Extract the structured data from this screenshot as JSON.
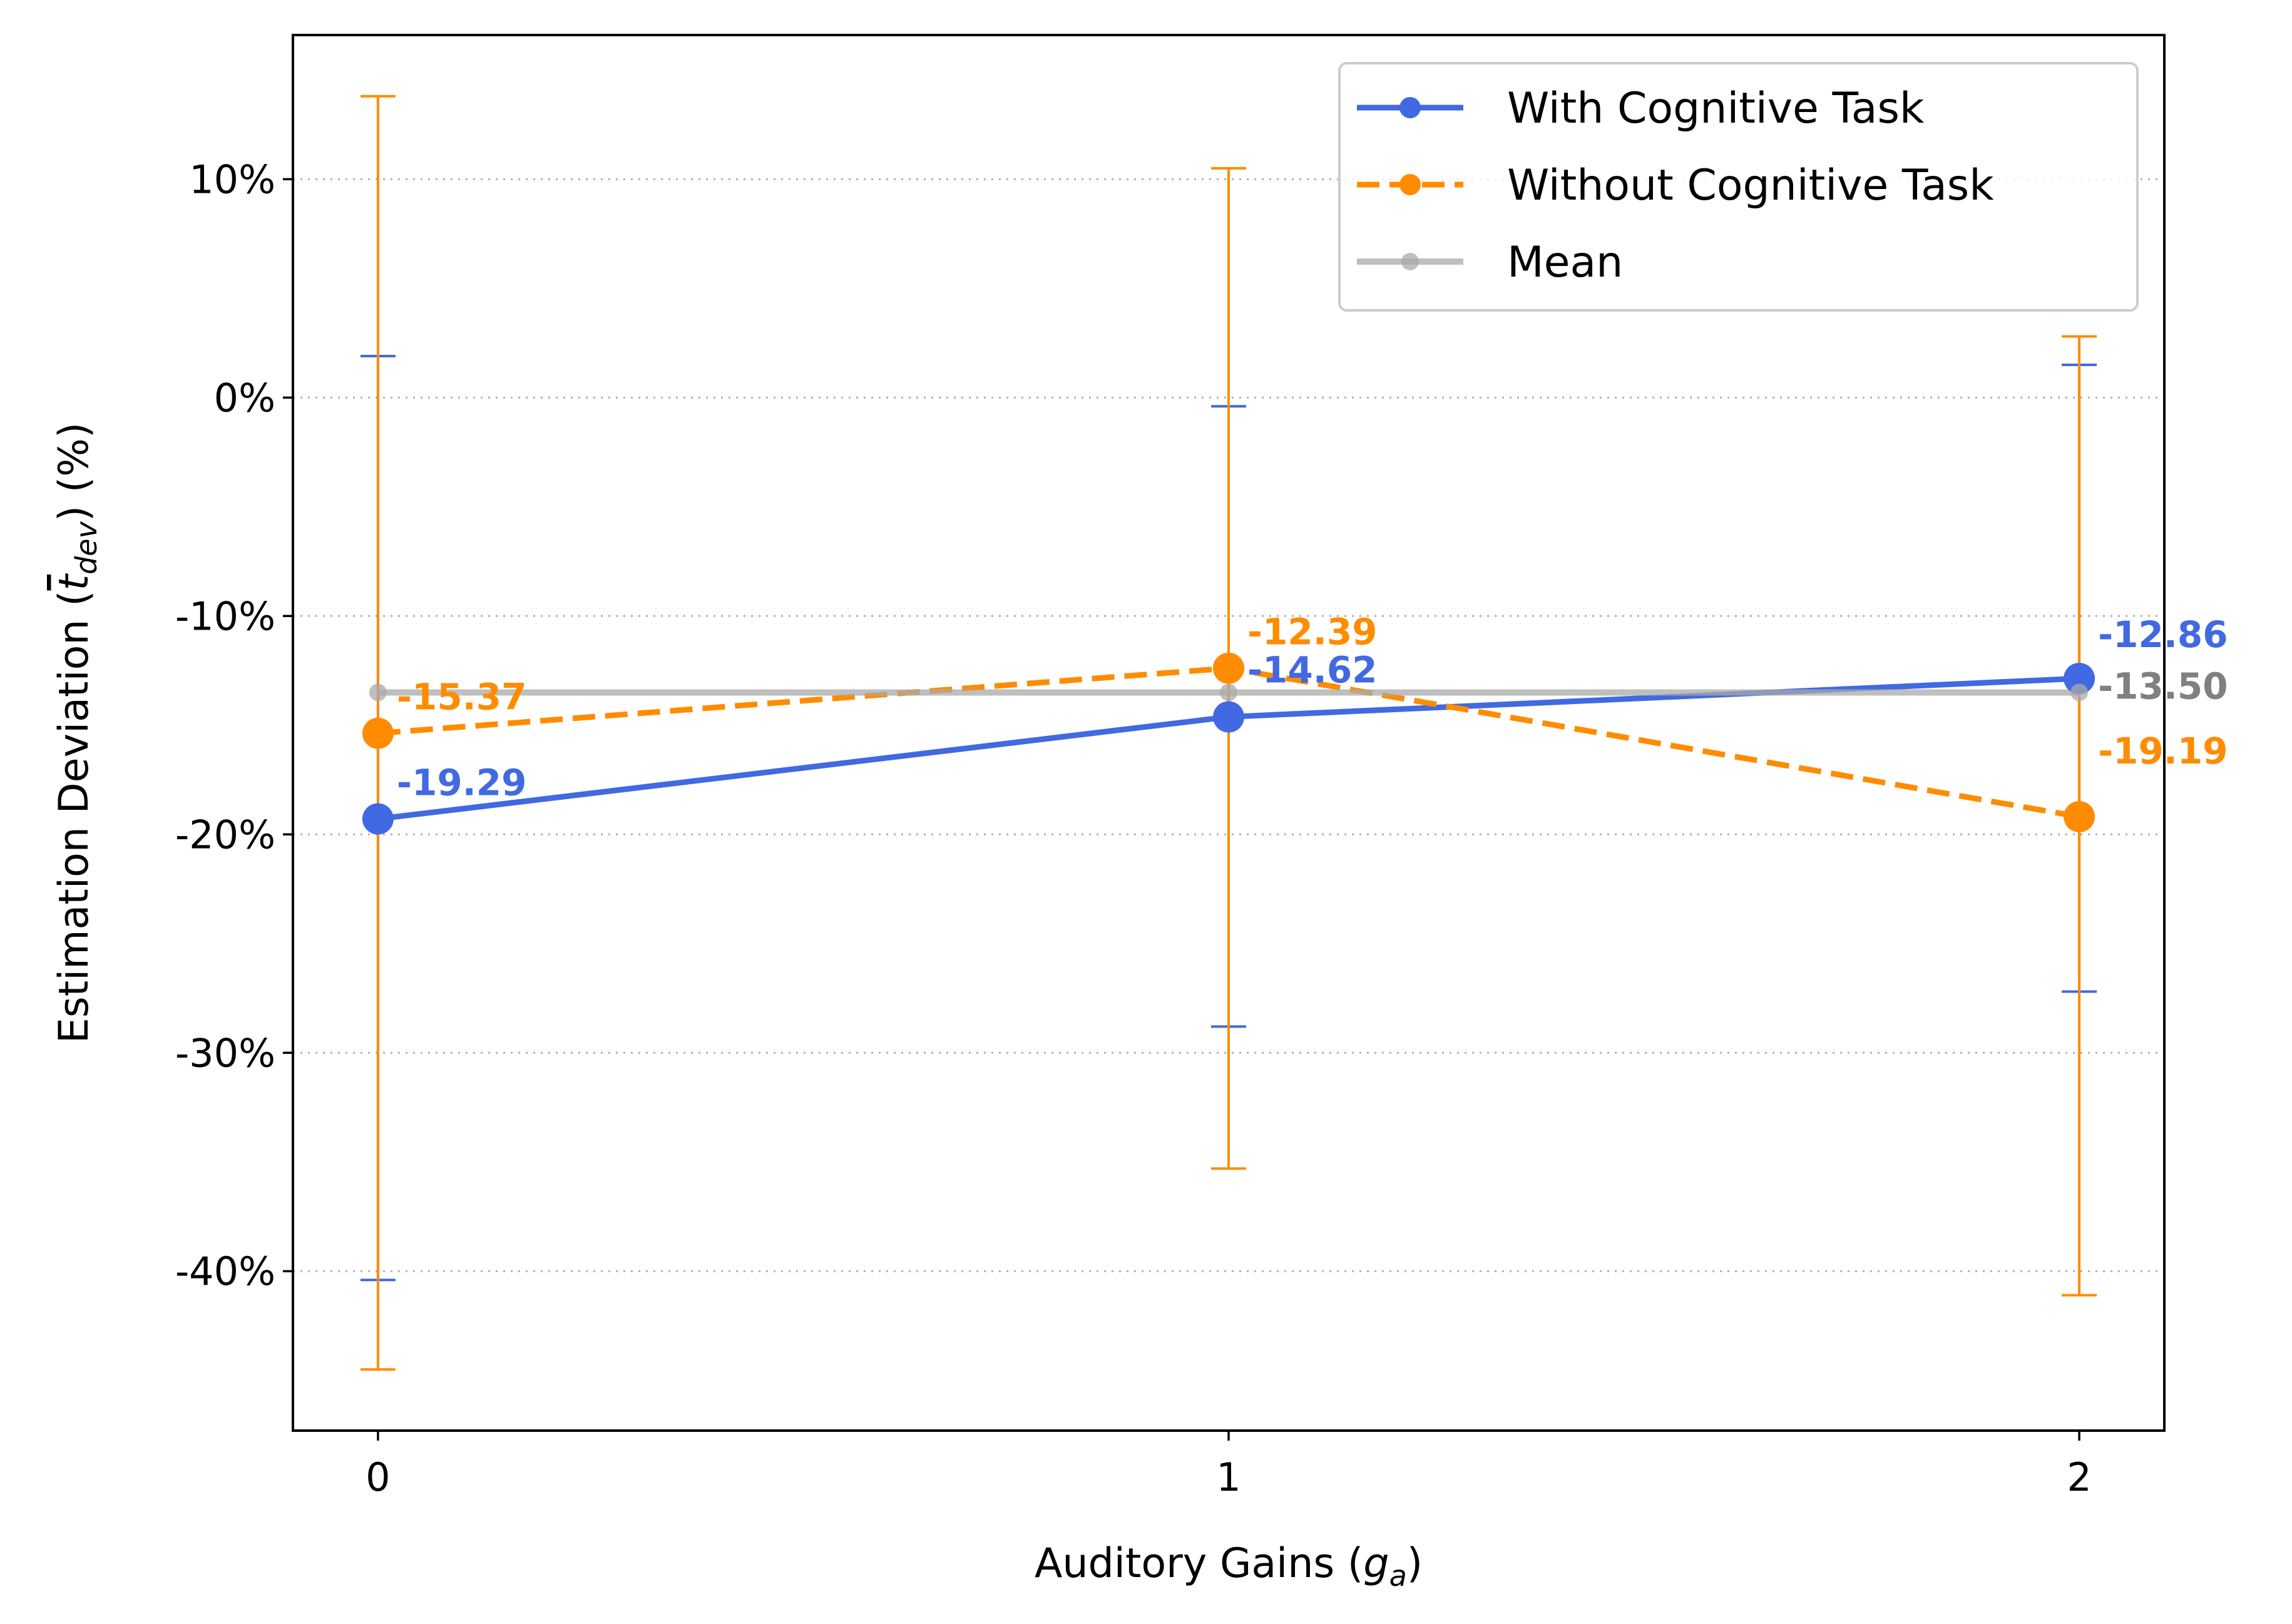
{
  "chart_data": {
    "type": "line",
    "x": [
      0,
      1,
      2
    ],
    "xtick_labels": [
      "0",
      "1",
      "2"
    ],
    "xlim": [
      -0.1,
      2.1
    ],
    "ylim": [
      -47.3,
      16.6
    ],
    "yticks": [
      10,
      0,
      -10,
      -20,
      -30,
      -40
    ],
    "ytick_labels": [
      "10%",
      "0%",
      "-10%",
      "-20%",
      "-30%",
      "-40%"
    ],
    "xlabel": "Auditory Gains (",
    "xlabel_math": "g",
    "xlabel_sub": "a",
    "xlabel_tail": ")",
    "ylabel": "Estimation Deviation (",
    "ylabel_math": "t",
    "ylabel_sub": "dev",
    "ylabel_tail": ") (%)",
    "grid": "horizontal-dotted",
    "legend_position": "top-right",
    "series": [
      {
        "name": "With Cognitive Task",
        "values": [
          -19.29,
          -14.62,
          -12.86
        ],
        "err_low": [
          -40.4,
          -28.8,
          -27.2
        ],
        "err_high": [
          1.9,
          -0.4,
          1.5
        ],
        "labels": [
          "-19.29",
          "-14.62",
          "-12.86"
        ],
        "color": "#4169e1",
        "dash": "solid"
      },
      {
        "name": "Without Cognitive Task",
        "values": [
          -15.37,
          -12.39,
          -19.19
        ],
        "err_low": [
          -44.5,
          -35.3,
          -41.1
        ],
        "err_high": [
          13.8,
          10.5,
          2.8
        ],
        "labels": [
          "-15.37",
          "-12.39",
          "-19.19"
        ],
        "color": "#ff8c00",
        "dash": "dashed"
      },
      {
        "name": "Mean",
        "values": [
          -13.5,
          -13.5,
          -13.5
        ],
        "labels": [
          "",
          "",
          "-13.50"
        ],
        "color": "#a9a9a9",
        "label_color": "#808080",
        "dash": "solid"
      }
    ]
  }
}
